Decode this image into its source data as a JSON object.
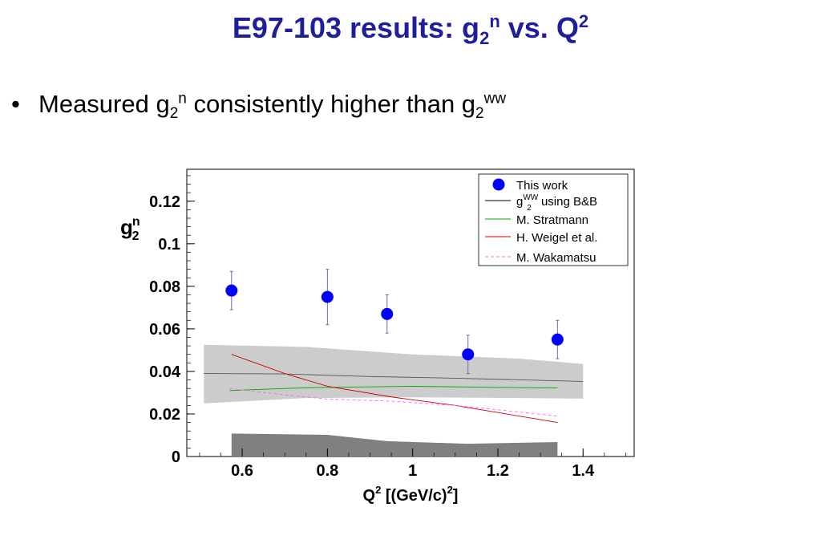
{
  "slide": {
    "title": {
      "main": "E97-103 results: g",
      "sub": "2",
      "sup": "n",
      "mid": " vs. Q",
      "sup2": "2"
    },
    "bullet": {
      "text1": "Measured g",
      "sub1": "2",
      "sup1": "n",
      "text2": " consistently higher than g",
      "sub2": "2",
      "sup2": "ww"
    }
  },
  "chart_data": {
    "type": "scatter",
    "xlabel": {
      "main": "Q",
      "sup": "2",
      "rest": " [(GeV/c)",
      "sup2": "2",
      "end": "]"
    },
    "ylabel": {
      "main": "g",
      "sup": "n",
      "sub": "2"
    },
    "xlim": [
      0.47,
      1.52
    ],
    "ylim": [
      0,
      0.135
    ],
    "xticks": [
      0.6,
      0.8,
      1,
      1.2,
      1.4
    ],
    "xtick_labels": [
      "0.6",
      "0.8",
      "1",
      "1.2",
      "1.4"
    ],
    "yticks": [
      0,
      0.02,
      0.04,
      0.06,
      0.08,
      0.1,
      0.12
    ],
    "ytick_labels": [
      "0",
      "0.02",
      "0.04",
      "0.06",
      "0.08",
      "0.1",
      "0.12"
    ],
    "legend_position": "top-right",
    "legend": [
      {
        "label": "This work",
        "type": "marker",
        "color": "#0000ff"
      },
      {
        "label": "g",
        "sub": "2",
        "sup": "WW",
        "rest": " using B&B",
        "type": "line",
        "color": "#000000"
      },
      {
        "label": "M. Stratmann",
        "type": "line",
        "color": "#00aa00"
      },
      {
        "label": "H. Weigel et al.",
        "type": "line",
        "color": "#cc0000"
      },
      {
        "label": "M. Wakamatsu",
        "type": "dashed",
        "color": "#ff66ff"
      }
    ],
    "series": [
      {
        "id": "this-work",
        "style": "marker",
        "color": "#0000ff",
        "points": [
          {
            "x": 0.575,
            "y": 0.078,
            "err": 0.009
          },
          {
            "x": 0.8,
            "y": 0.075,
            "err": 0.013
          },
          {
            "x": 0.94,
            "y": 0.067,
            "err": 0.009
          },
          {
            "x": 1.13,
            "y": 0.048,
            "err": 0.009
          },
          {
            "x": 1.34,
            "y": 0.055,
            "err": 0.009
          }
        ]
      },
      {
        "id": "g2ww-bb",
        "style": "line",
        "color": "#555555",
        "x": [
          0.51,
          0.7,
          0.9,
          1.1,
          1.3,
          1.4
        ],
        "y": [
          0.039,
          0.0388,
          0.0376,
          0.0368,
          0.0358,
          0.0353
        ]
      },
      {
        "id": "stratmann",
        "style": "line",
        "color": "#00aa00",
        "x": [
          0.57,
          0.7,
          0.8,
          1.0,
          1.2,
          1.34
        ],
        "y": [
          0.031,
          0.032,
          0.0325,
          0.033,
          0.0325,
          0.0322
        ]
      },
      {
        "id": "weigel",
        "style": "line",
        "color": "#cc0000",
        "x": [
          0.575,
          0.7,
          0.8,
          0.95,
          1.1,
          1.34
        ],
        "y": [
          0.048,
          0.039,
          0.033,
          0.028,
          0.024,
          0.016
        ]
      },
      {
        "id": "wakamatsu",
        "style": "dashed",
        "color": "#ff66ff",
        "x": [
          0.57,
          0.7,
          0.8,
          0.95,
          1.1,
          1.2,
          1.34
        ],
        "y": [
          0.032,
          0.029,
          0.027,
          0.026,
          0.024,
          0.022,
          0.019
        ]
      }
    ],
    "bands": [
      {
        "id": "g2ww-uncertainty-band",
        "color": "#cccccc",
        "x": [
          0.51,
          0.75,
          1.0,
          1.25,
          1.4
        ],
        "upper": [
          0.0525,
          0.0515,
          0.048,
          0.046,
          0.0435
        ],
        "lower": [
          0.025,
          0.0275,
          0.0278,
          0.0275,
          0.0272
        ]
      },
      {
        "id": "systematic-error-band",
        "color": "#808080",
        "x": [
          0.575,
          0.8,
          0.94,
          1.13,
          1.34
        ],
        "upper": [
          0.0108,
          0.0102,
          0.0072,
          0.006,
          0.0068
        ],
        "lower": [
          0,
          0,
          0,
          0,
          0
        ]
      }
    ]
  }
}
